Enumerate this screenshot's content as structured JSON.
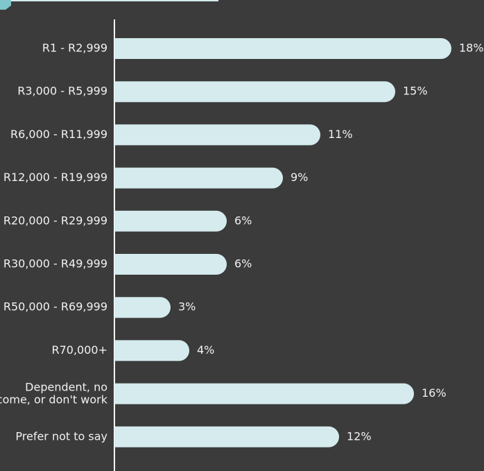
{
  "chart_data": {
    "type": "bar",
    "orientation": "horizontal",
    "categories": [
      "R1 - R2,999",
      "R3,000 - R5,999",
      "R6,000 - R11,999",
      "R12,000 - R19,999",
      "R20,000 - R29,999",
      "R30,000 - R49,999",
      "R50,000 - R69,999",
      "R70,000+",
      "Dependent, no\nincome, or don't work",
      "Prefer not to say"
    ],
    "values": [
      18,
      15,
      11,
      9,
      6,
      6,
      3,
      4,
      16,
      12
    ],
    "value_labels": [
      "18%",
      "15%",
      "11%",
      "9%",
      "6%",
      "6%",
      "3%",
      "4%",
      "16%",
      "12%"
    ],
    "color": "#d5ebee"
  }
}
